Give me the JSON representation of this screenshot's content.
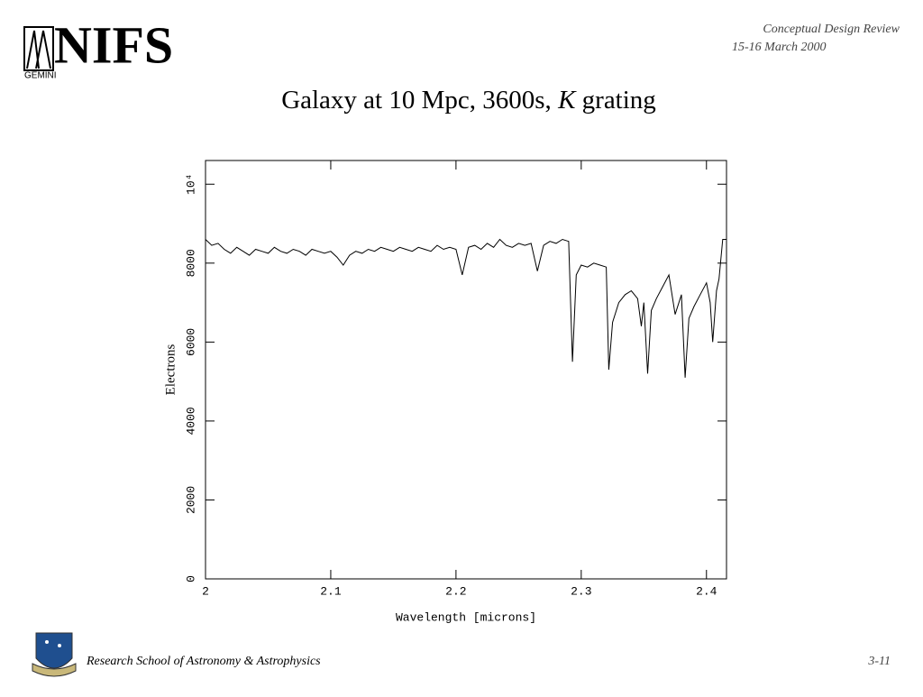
{
  "header": {
    "logo_text": "NIFS",
    "logo_subtext": "GEMINI",
    "review": "Conceptual Design Review",
    "date": "15-16 March 2000",
    "title_start": "Galaxy at 10 Mpc, 3600s,",
    "title_italic": "K",
    "title_end": "grating"
  },
  "footer": {
    "institution": "Research School of Astronomy & Astrophysics",
    "page": "3-11"
  },
  "chart_data": {
    "type": "line",
    "x_label": "Wavelength [microns]",
    "y_label": "Electrons",
    "xlim": [
      2.0,
      2.416
    ],
    "ylim": [
      0,
      10600
    ],
    "xticks": [
      2,
      2.1,
      2.2,
      2.3,
      2.4
    ],
    "yticks": [
      0,
      2000,
      4000,
      6000,
      8000,
      {
        "value": 10000,
        "label": "10⁴"
      }
    ],
    "x": [
      2.0,
      2.005,
      2.01,
      2.015,
      2.02,
      2.025,
      2.03,
      2.035,
      2.04,
      2.045,
      2.05,
      2.055,
      2.06,
      2.065,
      2.07,
      2.075,
      2.08,
      2.085,
      2.09,
      2.095,
      2.1,
      2.105,
      2.11,
      2.115,
      2.12,
      2.125,
      2.13,
      2.135,
      2.14,
      2.145,
      2.15,
      2.155,
      2.16,
      2.165,
      2.17,
      2.175,
      2.18,
      2.185,
      2.19,
      2.195,
      2.2,
      2.205,
      2.21,
      2.215,
      2.22,
      2.225,
      2.23,
      2.235,
      2.24,
      2.245,
      2.25,
      2.255,
      2.26,
      2.265,
      2.27,
      2.275,
      2.28,
      2.285,
      2.29,
      2.293,
      2.296,
      2.3,
      2.305,
      2.31,
      2.315,
      2.32,
      2.322,
      2.325,
      2.33,
      2.335,
      2.34,
      2.345,
      2.348,
      2.35,
      2.353,
      2.356,
      2.36,
      2.365,
      2.37,
      2.375,
      2.38,
      2.383,
      2.386,
      2.39,
      2.395,
      2.4,
      2.403,
      2.405,
      2.408,
      2.41,
      2.413,
      2.416
    ],
    "series": [
      {
        "color": "#000000",
        "values": [
          8600,
          8450,
          8500,
          8350,
          8250,
          8400,
          8300,
          8200,
          8350,
          8300,
          8250,
          8400,
          8300,
          8250,
          8350,
          8300,
          8200,
          8350,
          8300,
          8250,
          8300,
          8150,
          7950,
          8200,
          8300,
          8250,
          8350,
          8300,
          8400,
          8350,
          8300,
          8400,
          8350,
          8300,
          8400,
          8350,
          8300,
          8450,
          8350,
          8400,
          8350,
          7700,
          8400,
          8450,
          8350,
          8500,
          8400,
          8600,
          8450,
          8400,
          8500,
          8450,
          8500,
          7800,
          8450,
          8550,
          8500,
          8600,
          8550,
          5500,
          7700,
          7950,
          7900,
          8000,
          7950,
          7900,
          5300,
          6500,
          7000,
          7200,
          7300,
          7100,
          6400,
          7000,
          5200,
          6800,
          7100,
          7400,
          7700,
          6700,
          7200,
          5100,
          6600,
          6900,
          7200,
          7500,
          7000,
          6000,
          7300,
          7600,
          8600,
          8600
        ]
      }
    ]
  }
}
